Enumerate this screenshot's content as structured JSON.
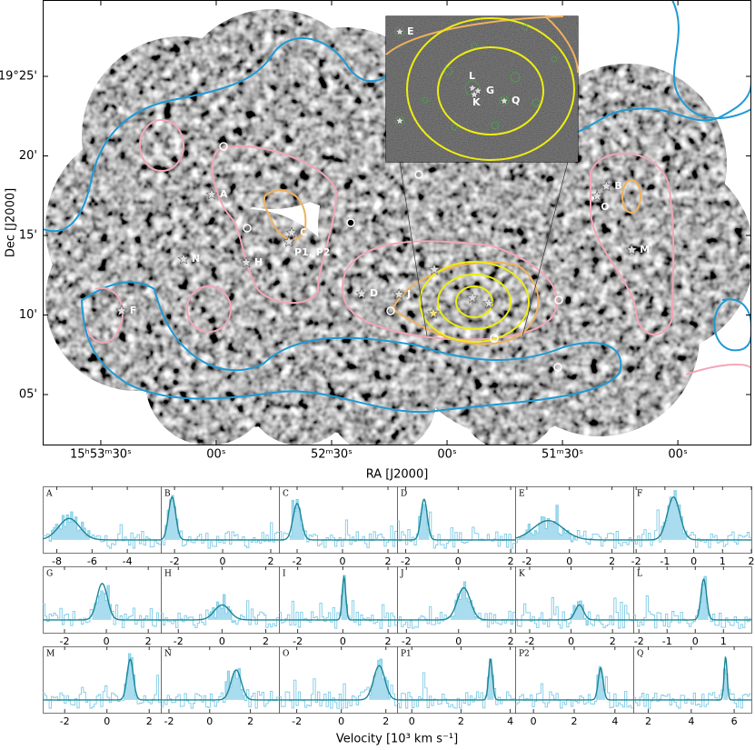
{
  "chart_data": [
    {
      "type": "image",
      "xlabel": "RA [J2000]",
      "ylabel": "Dec [J2000]",
      "xlim": [
        57225.1,
        57040.9
      ],
      "xticks": [
        {
          "value": 57210,
          "label": "15ʰ53ᵐ30ˢ"
        },
        {
          "value": 57180,
          "label": "00ˢ"
        },
        {
          "value": 57150,
          "label": "52ᵐ30ˢ"
        },
        {
          "value": 57120,
          "label": "00ˢ"
        },
        {
          "value": 57090,
          "label": "51ᵐ30ˢ"
        },
        {
          "value": 57060,
          "label": "00ˢ"
        }
      ],
      "ylim": [
        1.8,
        29.8
      ],
      "yticks": [
        {
          "value": 25,
          "label": "19°25'"
        },
        {
          "value": 20,
          "label": "20'"
        },
        {
          "value": 15,
          "label": "15'"
        },
        {
          "value": 10,
          "label": "10'"
        },
        {
          "value": 5,
          "label": "05'"
        }
      ],
      "points": [
        {
          "name": "A",
          "ra": 57181.2,
          "dec": 17.57
        },
        {
          "name": "B",
          "ra": 57078.6,
          "dec": 18.09
        },
        {
          "name": "C",
          "ra": 57160.4,
          "dec": 15.17
        },
        {
          "name": "D",
          "ra": 57142.2,
          "dec": 11.34
        },
        {
          "name": "F",
          "ra": 57204.6,
          "dec": 10.26
        },
        {
          "name": "H",
          "ra": 57172.2,
          "dec": 13.29
        },
        {
          "name": "J",
          "ra": 57132.5,
          "dec": 11.29
        },
        {
          "name": "M",
          "ra": 57072.0,
          "dec": 14.09
        },
        {
          "name": "N",
          "ra": 57188.5,
          "dec": 13.51
        },
        {
          "name": "O",
          "ra": 57081.0,
          "dec": 17.46
        },
        {
          "name": "P1, P2",
          "ra": 57161.1,
          "dec": 14.6
        }
      ],
      "inset_labels": [
        "E",
        "L",
        "G",
        "K",
        "Q"
      ]
    },
    {
      "type": "spectra",
      "xlabel": "Velocity [10³ km s⁻¹]",
      "ylim": [
        -0.3,
        1.25
      ],
      "panels": [
        {
          "label": "A",
          "xlim": [
            -8.8,
            -2.1
          ],
          "xticks": [
            -8,
            -6,
            -4
          ],
          "peak": {
            "center": -7.3,
            "height": 0.5,
            "sigma": 0.6
          }
        },
        {
          "label": "B",
          "xlim": [
            -2.57,
            2.34
          ],
          "xticks": [
            -2,
            0,
            2
          ],
          "peak": {
            "center": -2.1,
            "height": 1.0,
            "sigma": 0.15
          }
        },
        {
          "label": "C",
          "xlim": [
            -2.8,
            2.4
          ],
          "xticks": [
            -2,
            0,
            2
          ],
          "peak": {
            "center": -2.0,
            "height": 0.85,
            "sigma": 0.18
          }
        },
        {
          "label": "D",
          "xlim": [
            -2.33,
            2.17
          ],
          "xticks": [
            -2,
            0,
            2
          ],
          "peak": {
            "center": -1.3,
            "height": 0.95,
            "sigma": 0.12
          }
        },
        {
          "label": "E",
          "xlim": [
            -2.55,
            3.0
          ],
          "xticks": [
            -2,
            0,
            2
          ],
          "peak": {
            "center": -1.0,
            "height": 0.45,
            "sigma": 0.7
          }
        },
        {
          "label": "F",
          "xlim": [
            -2.1,
            2.0
          ],
          "xticks": [
            -2,
            -1,
            0,
            1,
            2
          ],
          "peak": {
            "center": -0.7,
            "height": 1.0,
            "sigma": 0.22
          }
        },
        {
          "label": "G",
          "xlim": [
            -3.04,
            2.6
          ],
          "xticks": [
            -2,
            0,
            2
          ],
          "peak": {
            "center": -0.2,
            "height": 0.85,
            "sigma": 0.25
          }
        },
        {
          "label": "H",
          "xlim": [
            -2.8,
            2.6
          ],
          "xticks": [
            -2,
            0,
            2
          ],
          "peak": {
            "center": 0.0,
            "height": 0.35,
            "sigma": 0.35
          }
        },
        {
          "label": "I",
          "xlim": [
            -2.83,
            2.4
          ],
          "xticks": [
            -2,
            0,
            2
          ],
          "peak": {
            "center": 0.05,
            "height": 1.0,
            "sigma": 0.08
          }
        },
        {
          "label": "J",
          "xlim": [
            -2.36,
            2.17
          ],
          "xticks": [
            -2,
            0,
            2
          ],
          "peak": {
            "center": 0.2,
            "height": 0.75,
            "sigma": 0.25
          }
        },
        {
          "label": "K",
          "xlim": [
            -2.7,
            3.0
          ],
          "xticks": [
            -2,
            0,
            2
          ],
          "peak": {
            "center": 0.4,
            "height": 0.35,
            "sigma": 0.2
          }
        },
        {
          "label": "L",
          "xlim": [
            -2.2,
            1.99
          ],
          "xticks": [
            -2,
            -1,
            0,
            1
          ],
          "peak": {
            "center": 0.3,
            "height": 0.95,
            "sigma": 0.1
          }
        },
        {
          "label": "M",
          "xlim": [
            -3.04,
            2.55
          ],
          "xticks": [
            -2,
            0,
            2
          ],
          "peak": {
            "center": 1.1,
            "height": 0.95,
            "sigma": 0.15
          }
        },
        {
          "label": "N",
          "xlim": [
            -2.4,
            3.4
          ],
          "xticks": [
            -2,
            0,
            2
          ],
          "peak": {
            "center": 1.3,
            "height": 0.7,
            "sigma": 0.25
          }
        },
        {
          "label": "O",
          "xlim": [
            -2.8,
            2.5
          ],
          "xticks": [
            -2,
            0,
            2
          ],
          "peak": {
            "center": 1.7,
            "height": 0.8,
            "sigma": 0.25
          }
        },
        {
          "label": "P1",
          "xlim": [
            -0.6,
            4.2
          ],
          "xticks": [
            0,
            2,
            4
          ],
          "peak": {
            "center": 3.2,
            "height": 0.95,
            "sigma": 0.08
          }
        },
        {
          "label": "P2",
          "xlim": [
            -0.9,
            4.9
          ],
          "xticks": [
            0,
            2,
            4
          ],
          "peak": {
            "center": 3.3,
            "height": 0.75,
            "sigma": 0.12
          }
        },
        {
          "label": "Q",
          "xlim": [
            1.3,
            6.8
          ],
          "xticks": [
            2,
            4,
            6
          ],
          "peak": {
            "center": 5.6,
            "height": 1.0,
            "sigma": 0.07
          }
        }
      ]
    }
  ]
}
